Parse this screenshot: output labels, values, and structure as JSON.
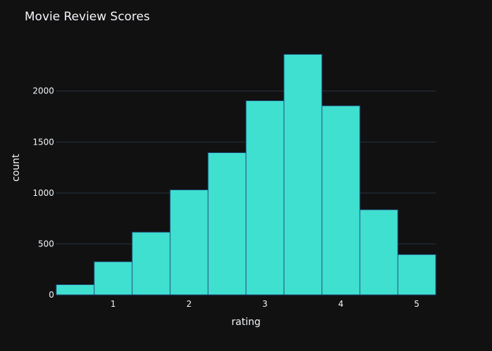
{
  "chart_data": {
    "type": "bar",
    "title": "Movie Review Scores",
    "xlabel": "rating",
    "ylabel": "count",
    "x_ticks": [
      1,
      2,
      3,
      4,
      5
    ],
    "y_ticks": [
      0,
      500,
      1000,
      1500,
      2000
    ],
    "xlim": [
      0.25,
      5.25
    ],
    "ylim": [
      0,
      2480
    ],
    "bin_width": 0.5,
    "bins": [
      {
        "start": 0.25,
        "end": 0.75,
        "count": 100
      },
      {
        "start": 0.75,
        "end": 1.25,
        "count": 325
      },
      {
        "start": 1.25,
        "end": 1.75,
        "count": 615
      },
      {
        "start": 1.75,
        "end": 2.25,
        "count": 1030
      },
      {
        "start": 2.25,
        "end": 2.75,
        "count": 1395
      },
      {
        "start": 2.75,
        "end": 3.25,
        "count": 1905
      },
      {
        "start": 3.25,
        "end": 3.75,
        "count": 2360
      },
      {
        "start": 3.75,
        "end": 4.25,
        "count": 1855
      },
      {
        "start": 4.25,
        "end": 4.75,
        "count": 835
      },
      {
        "start": 4.75,
        "end": 5.25,
        "count": 395
      }
    ],
    "grid": true,
    "legend": "none",
    "colors": {
      "background": "#111111",
      "bar_fill": "#40e0d0",
      "bar_outline": "#1f4a7a",
      "grid": "#283442",
      "text": "#f2f5fa"
    }
  }
}
